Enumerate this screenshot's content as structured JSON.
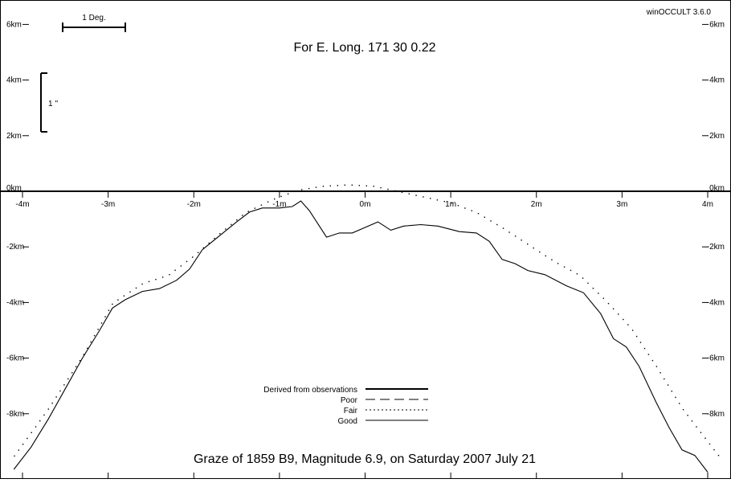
{
  "app_version": "winOCCULT 3.6.0",
  "header": "For E. Long.  171 30  0.22",
  "footer": "Graze of     1859   B9,  Magnitude   6.9,  on Saturday  2007  July  21",
  "scale": {
    "degree_label": "1 Deg.",
    "arcsec_label": "1 ''"
  },
  "legend": {
    "items": [
      {
        "label": "Derived from observations",
        "style": "thick"
      },
      {
        "label": "Poor",
        "style": "dash"
      },
      {
        "label": "Fair",
        "style": "dot"
      },
      {
        "label": "Good",
        "style": "thin"
      }
    ]
  },
  "chart_data": {
    "type": "line",
    "title": "Graze of 1859 B9, Magnitude 6.9, on Saturday 2007 July 21",
    "subtitle": "For E. Long. 171 30 0.22",
    "xlabel": "",
    "ylabel": "",
    "xlim": [
      -4,
      4
    ],
    "ylim": [
      -10.2,
      6.8
    ],
    "x_tick_labels": [
      "-4m",
      "-3m",
      "-2m",
      "-1m",
      "0m",
      "1m",
      "2m",
      "3m",
      "4m"
    ],
    "y_tick_labels": [
      "6km",
      "4km",
      "2km",
      "0km",
      "-2km",
      "-4km",
      "-6km",
      "-8km"
    ],
    "series": [
      {
        "name": "Good",
        "style": "thin",
        "points": [
          [
            -4.1,
            -10.0
          ],
          [
            -3.9,
            -9.2
          ],
          [
            -3.7,
            -8.2
          ],
          [
            -3.5,
            -7.1
          ],
          [
            -3.3,
            -6.0
          ],
          [
            -3.1,
            -5.0
          ],
          [
            -2.95,
            -4.2
          ],
          [
            -2.8,
            -3.9
          ],
          [
            -2.6,
            -3.6
          ],
          [
            -2.4,
            -3.5
          ],
          [
            -2.2,
            -3.2
          ],
          [
            -2.05,
            -2.8
          ],
          [
            -1.9,
            -2.1
          ],
          [
            -1.7,
            -1.6
          ],
          [
            -1.5,
            -1.1
          ],
          [
            -1.35,
            -0.75
          ],
          [
            -1.2,
            -0.6
          ],
          [
            -1.0,
            -0.6
          ],
          [
            -0.85,
            -0.55
          ],
          [
            -0.75,
            -0.35
          ],
          [
            -0.65,
            -0.7
          ],
          [
            -0.45,
            -1.65
          ],
          [
            -0.3,
            -1.5
          ],
          [
            -0.15,
            -1.5
          ],
          [
            0.0,
            -1.3
          ],
          [
            0.15,
            -1.1
          ],
          [
            0.3,
            -1.4
          ],
          [
            0.45,
            -1.25
          ],
          [
            0.65,
            -1.2
          ],
          [
            0.85,
            -1.25
          ],
          [
            1.1,
            -1.45
          ],
          [
            1.3,
            -1.5
          ],
          [
            1.45,
            -1.8
          ],
          [
            1.6,
            -2.45
          ],
          [
            1.75,
            -2.6
          ],
          [
            1.9,
            -2.85
          ],
          [
            2.1,
            -3.0
          ],
          [
            2.35,
            -3.4
          ],
          [
            2.55,
            -3.65
          ],
          [
            2.75,
            -4.4
          ],
          [
            2.9,
            -5.3
          ],
          [
            3.05,
            -5.6
          ],
          [
            3.2,
            -6.3
          ],
          [
            3.4,
            -7.6
          ],
          [
            3.55,
            -8.5
          ],
          [
            3.7,
            -9.3
          ],
          [
            3.85,
            -9.5
          ],
          [
            4.0,
            -10.1
          ]
        ]
      },
      {
        "name": "Fair",
        "style": "dot",
        "points": [
          [
            -4.1,
            -9.5
          ],
          [
            -3.7,
            -7.8
          ],
          [
            -3.3,
            -5.9
          ],
          [
            -2.95,
            -4.0
          ],
          [
            -2.6,
            -3.3
          ],
          [
            -2.3,
            -3.0
          ],
          [
            -2.0,
            -2.3
          ],
          [
            -1.7,
            -1.5
          ],
          [
            -1.4,
            -0.75
          ],
          [
            -1.1,
            -0.3
          ],
          [
            -0.8,
            0.05
          ],
          [
            -0.5,
            0.2
          ],
          [
            -0.2,
            0.25
          ],
          [
            0.1,
            0.2
          ],
          [
            0.4,
            0.0
          ],
          [
            0.7,
            -0.2
          ],
          [
            1.0,
            -0.4
          ],
          [
            1.3,
            -0.75
          ],
          [
            1.6,
            -1.3
          ],
          [
            1.9,
            -1.9
          ],
          [
            2.2,
            -2.5
          ],
          [
            2.5,
            -3.0
          ],
          [
            2.8,
            -3.9
          ],
          [
            3.1,
            -4.9
          ],
          [
            3.4,
            -6.3
          ],
          [
            3.7,
            -7.8
          ],
          [
            4.0,
            -9.0
          ],
          [
            4.15,
            -9.6
          ]
        ]
      }
    ]
  }
}
